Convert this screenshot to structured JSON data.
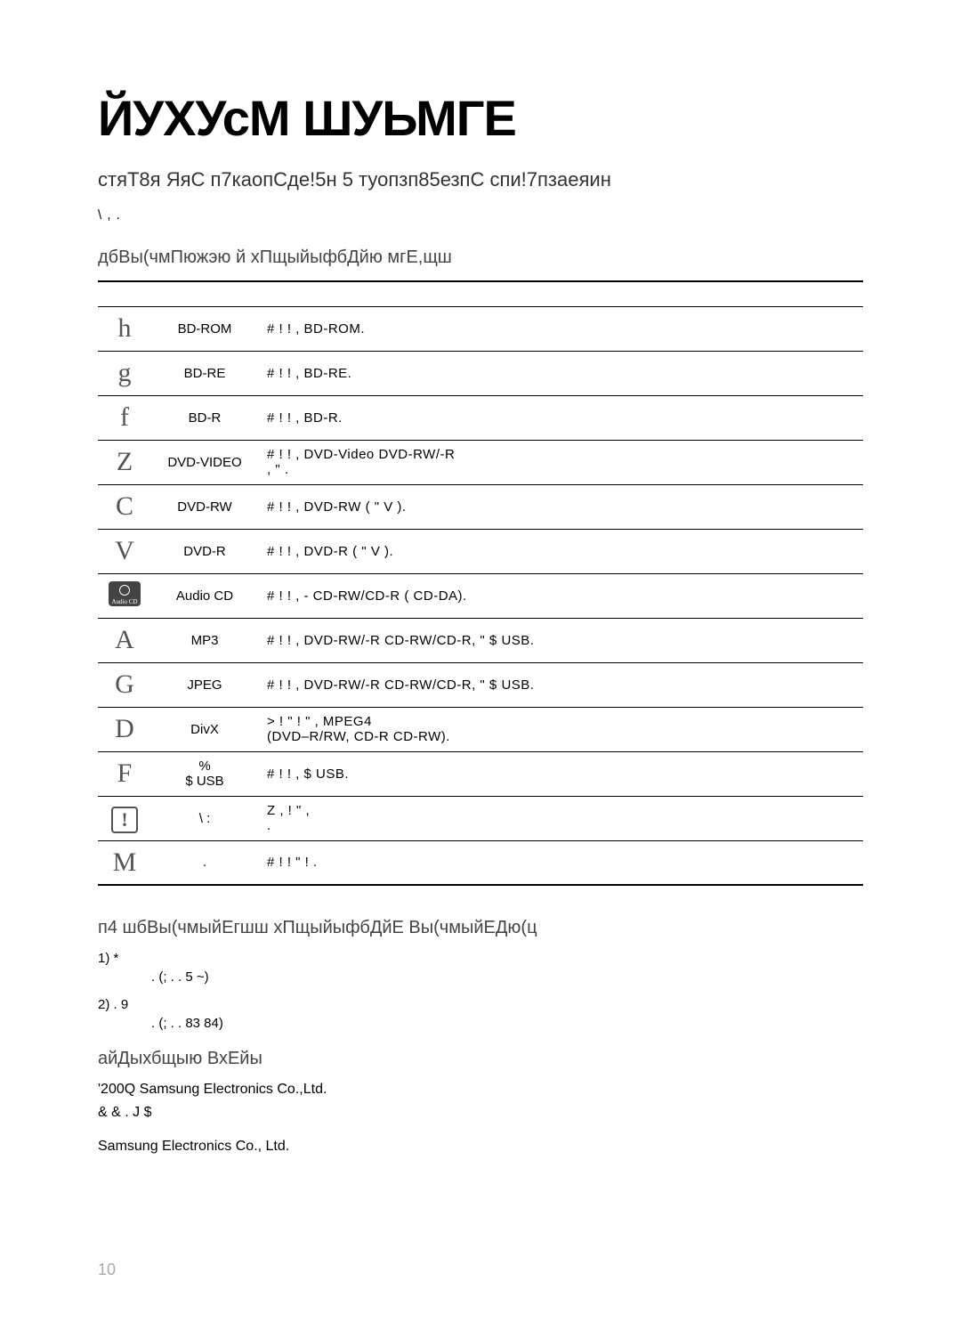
{
  "page": {
    "title": "ЙУХУсМ ШУЬМГЕ",
    "subtitle": "стяТ8я ЯяС п7каопСде!5н 5 туопзп85езпС спи!7пзаеяин",
    "note": "\\                             ,                                           .",
    "page_number": "10"
  },
  "table_header": "дбВы(чмПюжэю й хПщыйыфбДйю мгЕ,щш",
  "rows": [
    {
      "icon": "h",
      "icon_type": "letter",
      "disc": "BD-ROM",
      "desc": "#        !                   ! ,                        BD-ROM."
    },
    {
      "icon": "g",
      "icon_type": "letter",
      "disc": "BD-RE",
      "desc": "#        !                   ! ,                        BD-RE."
    },
    {
      "icon": "f",
      "icon_type": "letter",
      "disc": "BD-R",
      "desc": "#        !                   ! ,                        BD-R."
    },
    {
      "icon": "Z",
      "icon_type": "letter",
      "disc": "DVD-VIDEO",
      "desc": "#          !                   ! ,                      DVD-Video      DVD-RW/-R\n                    ,                  \"       ."
    },
    {
      "icon": "C",
      "icon_type": "letter",
      "disc": "DVD-RW",
      "desc": "#      !              ! ,                  DVD-RW (       \" V              )."
    },
    {
      "icon": "V",
      "icon_type": "letter",
      "disc": "DVD-R",
      "desc": "#      !              ! ,                  DVD-R (       \" V              )."
    },
    {
      "icon": "",
      "icon_type": "audiocd",
      "disc": "Audio CD",
      "desc": "#      !              ! ,                  -   CD-RW/CD-R (           CD-DA)."
    },
    {
      "icon": "A",
      "icon_type": "letter",
      "disc": "MP3",
      "desc": "#      !              ! ,                   DVD-RW/-R  CD-RW/CD-R,    \"          $      USB."
    },
    {
      "icon": "G",
      "icon_type": "letter",
      "disc": "JPEG",
      "desc": "#      !              ! ,                   DVD-RW/-R  CD-RW/CD-R,    \"          $      USB."
    },
    {
      "icon": "D",
      "icon_type": "letter",
      "disc": "DivX",
      "desc": ">    !   \"              !   \" ,                     MPEG4\n(DVD–R/RW, CD-R    CD-RW)."
    },
    {
      "icon": "F",
      "icon_type": "letter",
      "disc": "%\n$    USB",
      "desc": "#        !                   ! ,                         $        USB."
    },
    {
      "icon": "",
      "icon_type": "exclaim",
      "disc": "\\      :",
      "desc": "Z                   ,     !  \"            ,\n             ."
    },
    {
      "icon": "M",
      "icon_type": "letter",
      "disc": ".",
      "desc": "#                          !               !                   \"     ! ."
    }
  ],
  "section2": {
    "header": "п4 шбВы(чмыйЕгшш хПщыйыфбДйЕ Вы(чмыйЕДю(ц",
    "item1": "1)   *",
    "item1_sub": ". (; .    . 5 ~)",
    "item2": "2)                                               .       9",
    "item2_sub": ". (; .    . 83 84)"
  },
  "section3": {
    "header": "айДыхбщыю ВхЕйы",
    "line1": "'200Q Samsung Electronics Co.,Ltd.",
    "line2": "       & &   . J            $",
    "line3": "Samsung Electronics Co., Ltd."
  }
}
